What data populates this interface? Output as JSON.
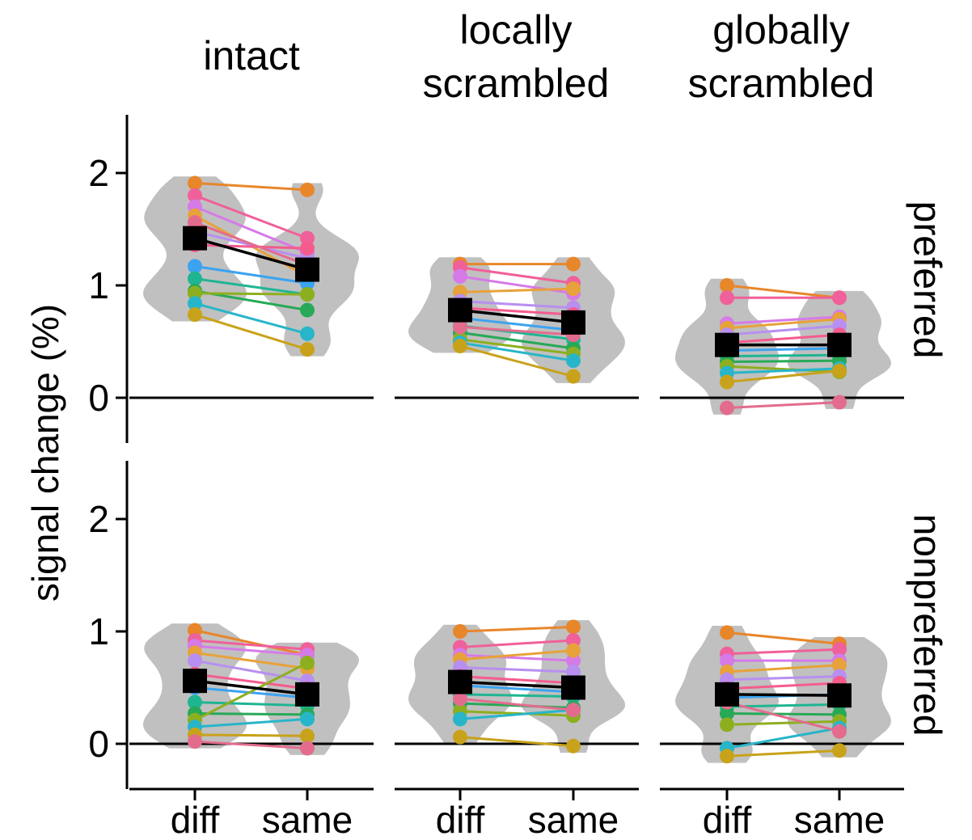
{
  "figure": {
    "y_axis_label": "signal change (%)",
    "column_titles": [
      [
        "intact"
      ],
      [
        "locally",
        "scrambled"
      ],
      [
        "globally",
        "scrambled"
      ]
    ],
    "row_labels": [
      "preferred",
      "nonpreferred"
    ],
    "y_ticks": [
      "0",
      "1",
      "2"
    ],
    "categories": [
      "diff",
      "same"
    ]
  },
  "chart_data": {
    "type": "line",
    "xlabel": "",
    "ylabel": "signal change (%)",
    "categories": [
      "diff",
      "same"
    ],
    "ylim": [
      -0.3,
      2.5
    ],
    "zero_line": true,
    "grid": false,
    "legend": "none",
    "subject_colors": [
      "#E8862A",
      "#F0609A",
      "#D67AE8",
      "#E7A23A",
      "#B88FF0",
      "#F45C8C",
      "#3BA3F0",
      "#1FB592",
      "#27A957",
      "#8DAF1F",
      "#28B5C9",
      "#C8A21A",
      "#E36C8E"
    ],
    "mean_marker_color": "#000000",
    "violin_color": "#C0C0C0",
    "panels": [
      {
        "column": "intact",
        "row": "preferred",
        "mean": [
          1.42,
          1.14
        ],
        "subjects": [
          [
            1.91,
            1.85
          ],
          [
            1.8,
            1.42
          ],
          [
            1.7,
            1.29
          ],
          [
            1.62,
            1.08
          ],
          [
            1.48,
            1.24
          ],
          [
            1.36,
            1.33
          ],
          [
            1.17,
            1.02
          ],
          [
            1.06,
            0.92
          ],
          [
            0.95,
            0.78
          ],
          [
            0.93,
            0.92
          ],
          [
            0.84,
            0.57
          ],
          [
            0.74,
            0.43
          ],
          [
            1.56,
            1.18
          ]
        ]
      },
      {
        "column": "locally scrambled",
        "row": "preferred",
        "mean": [
          0.78,
          0.67
        ],
        "subjects": [
          [
            1.19,
            1.19
          ],
          [
            1.16,
            1.02
          ],
          [
            1.08,
            0.93
          ],
          [
            0.94,
            0.97
          ],
          [
            0.86,
            0.8
          ],
          [
            0.8,
            0.74
          ],
          [
            0.71,
            0.6
          ],
          [
            0.64,
            0.52
          ],
          [
            0.58,
            0.44
          ],
          [
            0.52,
            0.39
          ],
          [
            0.49,
            0.33
          ],
          [
            0.46,
            0.19
          ],
          [
            0.63,
            0.56
          ]
        ]
      },
      {
        "column": "globally scrambled",
        "row": "preferred",
        "mean": [
          0.47,
          0.47
        ],
        "subjects": [
          [
            1.0,
            0.89
          ],
          [
            0.89,
            0.89
          ],
          [
            0.66,
            0.72
          ],
          [
            0.62,
            0.7
          ],
          [
            0.56,
            0.64
          ],
          [
            0.49,
            0.56
          ],
          [
            0.42,
            0.44
          ],
          [
            0.37,
            0.38
          ],
          [
            0.32,
            0.33
          ],
          [
            0.28,
            0.23
          ],
          [
            0.22,
            0.26
          ],
          [
            0.14,
            0.24
          ],
          [
            -0.09,
            -0.04
          ]
        ]
      },
      {
        "column": "intact",
        "row": "nonpreferred",
        "mean": [
          0.56,
          0.44
        ],
        "subjects": [
          [
            1.01,
            0.79
          ],
          [
            0.92,
            0.84
          ],
          [
            0.87,
            0.79
          ],
          [
            0.81,
            0.67
          ],
          [
            0.74,
            0.56
          ],
          [
            0.62,
            0.49
          ],
          [
            0.5,
            0.41
          ],
          [
            0.37,
            0.34
          ],
          [
            0.27,
            0.26
          ],
          [
            0.21,
            0.72
          ],
          [
            0.15,
            0.22
          ],
          [
            0.08,
            0.07
          ],
          [
            0.02,
            -0.04
          ]
        ]
      },
      {
        "column": "locally scrambled",
        "row": "nonpreferred",
        "mean": [
          0.55,
          0.5
        ],
        "subjects": [
          [
            1.0,
            1.04
          ],
          [
            0.86,
            0.92
          ],
          [
            0.79,
            0.74
          ],
          [
            0.75,
            0.83
          ],
          [
            0.68,
            0.64
          ],
          [
            0.6,
            0.54
          ],
          [
            0.52,
            0.46
          ],
          [
            0.44,
            0.42
          ],
          [
            0.36,
            0.32
          ],
          [
            0.29,
            0.25
          ],
          [
            0.22,
            0.3
          ],
          [
            0.06,
            -0.02
          ],
          [
            0.4,
            0.3
          ]
        ]
      },
      {
        "column": "globally scrambled",
        "row": "nonpreferred",
        "mean": [
          0.44,
          0.43
        ],
        "subjects": [
          [
            0.99,
            0.89
          ],
          [
            0.8,
            0.84
          ],
          [
            0.74,
            0.74
          ],
          [
            0.64,
            0.7
          ],
          [
            0.57,
            0.6
          ],
          [
            0.49,
            0.54
          ],
          [
            0.41,
            0.44
          ],
          [
            0.33,
            0.35
          ],
          [
            0.27,
            0.26
          ],
          [
            0.17,
            0.2
          ],
          [
            -0.04,
            0.14
          ],
          [
            -0.11,
            -0.06
          ],
          [
            0.37,
            0.11
          ]
        ]
      }
    ]
  }
}
